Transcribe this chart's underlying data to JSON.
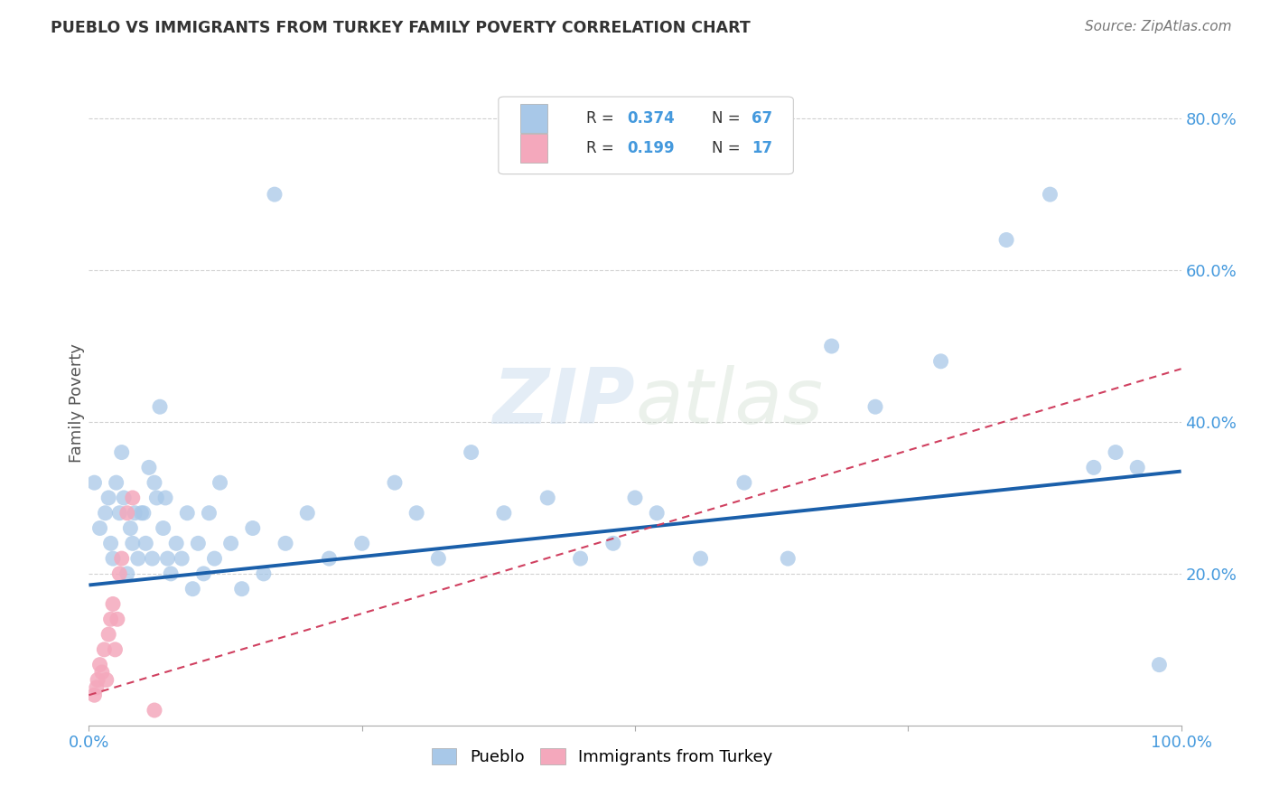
{
  "title": "PUEBLO VS IMMIGRANTS FROM TURKEY FAMILY POVERTY CORRELATION CHART",
  "source": "Source: ZipAtlas.com",
  "ylabel": "Family Poverty",
  "watermark": "ZIPatlas",
  "pueblo_color": "#a8c8e8",
  "turkey_color": "#f4a8bc",
  "pueblo_line_color": "#1a5faa",
  "turkey_line_color": "#d04060",
  "bg_color": "#ffffff",
  "grid_color": "#cccccc",
  "xlim": [
    0.0,
    1.0
  ],
  "ylim": [
    0.0,
    0.85
  ],
  "tick_color": "#4499dd",
  "ytick_labels": [
    "20.0%",
    "40.0%",
    "60.0%",
    "80.0%"
  ],
  "ytick_vals": [
    0.2,
    0.4,
    0.6,
    0.8
  ],
  "pueblo_scatter_x": [
    0.005,
    0.01,
    0.015,
    0.018,
    0.02,
    0.022,
    0.025,
    0.028,
    0.03,
    0.032,
    0.035,
    0.038,
    0.04,
    0.042,
    0.045,
    0.048,
    0.05,
    0.052,
    0.055,
    0.058,
    0.06,
    0.062,
    0.065,
    0.068,
    0.07,
    0.072,
    0.075,
    0.08,
    0.085,
    0.09,
    0.095,
    0.1,
    0.105,
    0.11,
    0.115,
    0.12,
    0.13,
    0.14,
    0.15,
    0.16,
    0.17,
    0.18,
    0.2,
    0.22,
    0.25,
    0.28,
    0.3,
    0.32,
    0.35,
    0.38,
    0.42,
    0.45,
    0.48,
    0.5,
    0.52,
    0.56,
    0.6,
    0.64,
    0.68,
    0.72,
    0.78,
    0.84,
    0.88,
    0.92,
    0.94,
    0.96,
    0.98
  ],
  "pueblo_scatter_y": [
    0.32,
    0.26,
    0.28,
    0.3,
    0.24,
    0.22,
    0.32,
    0.28,
    0.36,
    0.3,
    0.2,
    0.26,
    0.24,
    0.28,
    0.22,
    0.28,
    0.28,
    0.24,
    0.34,
    0.22,
    0.32,
    0.3,
    0.42,
    0.26,
    0.3,
    0.22,
    0.2,
    0.24,
    0.22,
    0.28,
    0.18,
    0.24,
    0.2,
    0.28,
    0.22,
    0.32,
    0.24,
    0.18,
    0.26,
    0.2,
    0.7,
    0.24,
    0.28,
    0.22,
    0.24,
    0.32,
    0.28,
    0.22,
    0.36,
    0.28,
    0.3,
    0.22,
    0.24,
    0.3,
    0.28,
    0.22,
    0.32,
    0.22,
    0.5,
    0.42,
    0.48,
    0.64,
    0.7,
    0.34,
    0.36,
    0.34,
    0.08
  ],
  "turkey_scatter_x": [
    0.005,
    0.007,
    0.008,
    0.01,
    0.012,
    0.014,
    0.016,
    0.018,
    0.02,
    0.022,
    0.024,
    0.026,
    0.028,
    0.03,
    0.035,
    0.04,
    0.06
  ],
  "turkey_scatter_y": [
    0.04,
    0.05,
    0.06,
    0.08,
    0.07,
    0.1,
    0.06,
    0.12,
    0.14,
    0.16,
    0.1,
    0.14,
    0.2,
    0.22,
    0.28,
    0.3,
    0.02
  ],
  "pueblo_line_x0": 0.0,
  "pueblo_line_y0": 0.185,
  "pueblo_line_x1": 1.0,
  "pueblo_line_y1": 0.335,
  "turkey_line_x0": 0.0,
  "turkey_line_y0": 0.04,
  "turkey_line_x1": 1.0,
  "turkey_line_y1": 0.47
}
